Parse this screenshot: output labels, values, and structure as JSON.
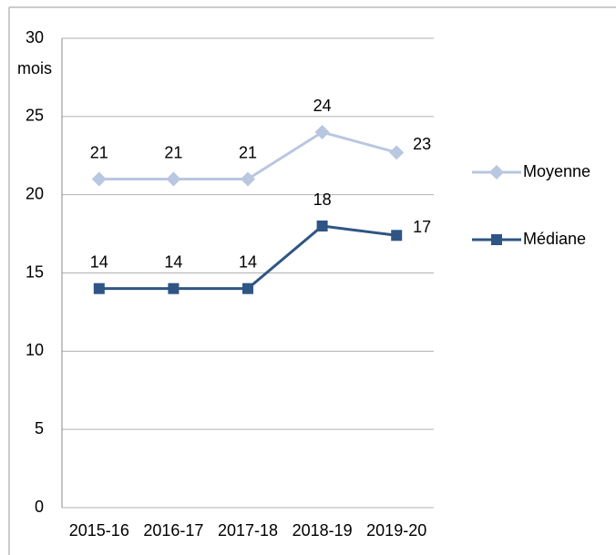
{
  "chart_data": {
    "type": "line",
    "y_label": "mois",
    "categories": [
      "2015-16",
      "2016-17",
      "2017-18",
      "2018-19",
      "2019-20"
    ],
    "series": [
      {
        "name": "Moyenne",
        "color": "#b9c7e0",
        "marker": "diamond",
        "values": [
          21,
          21,
          21,
          24,
          22.7
        ],
        "value_labels": [
          "21",
          "21",
          "21",
          "24",
          "23"
        ]
      },
      {
        "name": "Médiane",
        "color": "#2e5584",
        "marker": "square",
        "values": [
          14,
          14,
          14,
          18,
          17.4
        ],
        "value_labels": [
          "14",
          "14",
          "14",
          "18",
          "17"
        ]
      }
    ],
    "ylim": [
      0,
      30
    ],
    "yticks": [
      0,
      5,
      10,
      15,
      20,
      25,
      30
    ],
    "grid": true,
    "legend": "right"
  }
}
